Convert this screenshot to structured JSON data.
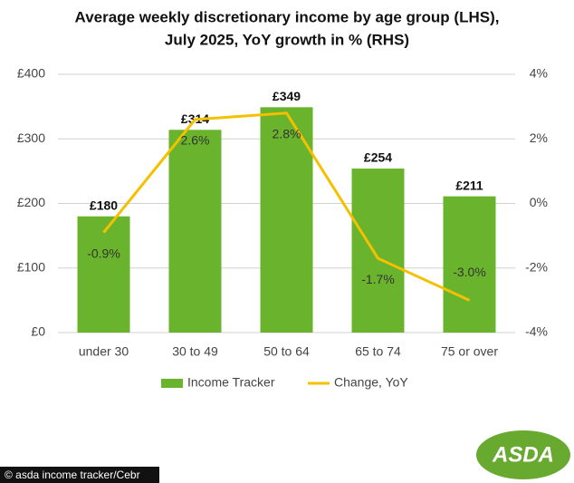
{
  "chart_data": {
    "type": "bar",
    "title": [
      "Average weekly discretionary income by age group (LHS),",
      "July 2025, YoY growth in % (RHS)"
    ],
    "categories": [
      "under 30",
      "30 to 49",
      "50 to 64",
      "65 to 74",
      "75 or over"
    ],
    "series": [
      {
        "name": "Income Tracker",
        "type": "bar",
        "color": "#6ab42d",
        "values": [
          180,
          314,
          349,
          254,
          211
        ],
        "value_labels": [
          "£180",
          "£314",
          "£349",
          "£254",
          "£211"
        ]
      },
      {
        "name": "Change, YoY",
        "type": "line",
        "axis": "y2",
        "color": "#f5c000",
        "values": [
          -0.9,
          2.6,
          2.8,
          -1.7,
          -3.0
        ],
        "value_labels": [
          "-0.9%",
          "2.6%",
          "2.8%",
          "-1.7%",
          "-3.0%"
        ]
      }
    ],
    "ylim": [
      0,
      400
    ],
    "yticks": [
      {
        "value": 0,
        "label": "£0"
      },
      {
        "value": 100,
        "label": "£100"
      },
      {
        "value": 200,
        "label": "£200"
      },
      {
        "value": 300,
        "label": "£300"
      },
      {
        "value": 400,
        "label": "£400"
      }
    ],
    "y2lim": [
      -4,
      4
    ],
    "y2ticks": [
      {
        "value": -4,
        "label": "-4%"
      },
      {
        "value": -2,
        "label": "-2%"
      },
      {
        "value": 0,
        "label": "0%"
      },
      {
        "value": 2,
        "label": "2%"
      },
      {
        "value": 4,
        "label": "4%"
      }
    ],
    "grid": true,
    "legend": "bottom"
  },
  "caption": "© asda income tracker/Cebr",
  "logo": "ASDA"
}
